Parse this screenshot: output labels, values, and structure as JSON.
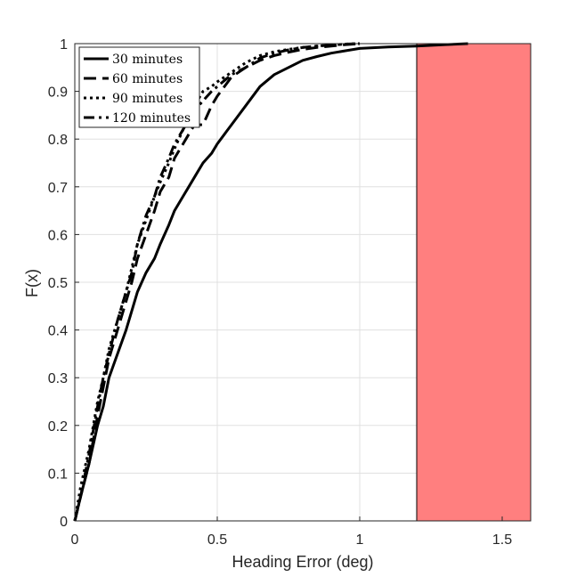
{
  "chart_data": {
    "type": "line",
    "xlabel": "Heading Error (deg)",
    "ylabel": "F(x)",
    "xlim": [
      0,
      1.6
    ],
    "ylim": [
      0,
      1
    ],
    "x_ticks": [
      "0",
      "0.5",
      "1",
      "1.5"
    ],
    "y_ticks": [
      "0",
      "0.1",
      "0.2",
      "0.3",
      "0.4",
      "0.5",
      "0.6",
      "0.7",
      "0.8",
      "0.9",
      "1"
    ],
    "grid": true,
    "legend_position": "top-left",
    "shaded_region": {
      "x_start": 1.2,
      "x_end": 1.6,
      "color": "#ff7f7f"
    },
    "series": [
      {
        "name": "30 minutes",
        "dash": "solid",
        "x": [
          0,
          0.02,
          0.05,
          0.08,
          0.1,
          0.12,
          0.15,
          0.18,
          0.2,
          0.22,
          0.25,
          0.28,
          0.3,
          0.33,
          0.35,
          0.38,
          0.4,
          0.43,
          0.45,
          0.48,
          0.5,
          0.55,
          0.6,
          0.65,
          0.7,
          0.75,
          0.8,
          0.85,
          0.9,
          0.95,
          1.0,
          1.1,
          1.2,
          1.3,
          1.38
        ],
        "y": [
          0,
          0.05,
          0.12,
          0.2,
          0.24,
          0.3,
          0.35,
          0.4,
          0.44,
          0.48,
          0.52,
          0.55,
          0.58,
          0.62,
          0.65,
          0.68,
          0.7,
          0.73,
          0.75,
          0.77,
          0.79,
          0.83,
          0.87,
          0.91,
          0.935,
          0.95,
          0.965,
          0.973,
          0.98,
          0.985,
          0.99,
          0.993,
          0.995,
          0.998,
          1.0
        ]
      },
      {
        "name": "60 minutes",
        "dash": "long",
        "x": [
          0,
          0.02,
          0.05,
          0.08,
          0.1,
          0.12,
          0.15,
          0.18,
          0.2,
          0.22,
          0.25,
          0.28,
          0.3,
          0.33,
          0.35,
          0.38,
          0.4,
          0.42,
          0.45,
          0.48,
          0.5,
          0.55,
          0.6,
          0.65,
          0.7,
          0.75,
          0.8,
          0.85,
          0.9,
          0.95,
          1.0
        ],
        "y": [
          0,
          0.05,
          0.12,
          0.22,
          0.28,
          0.34,
          0.4,
          0.46,
          0.5,
          0.55,
          0.6,
          0.65,
          0.69,
          0.72,
          0.76,
          0.79,
          0.81,
          0.83,
          0.83,
          0.87,
          0.89,
          0.93,
          0.95,
          0.965,
          0.975,
          0.982,
          0.988,
          0.992,
          0.995,
          0.998,
          1.0
        ]
      },
      {
        "name": "90 minutes",
        "dash": "dotted",
        "x": [
          0,
          0.02,
          0.05,
          0.08,
          0.1,
          0.12,
          0.15,
          0.18,
          0.2,
          0.22,
          0.25,
          0.28,
          0.3,
          0.33,
          0.35,
          0.38,
          0.4,
          0.43,
          0.45,
          0.48,
          0.5,
          0.55,
          0.6,
          0.65,
          0.7,
          0.75,
          0.8,
          0.85,
          0.9,
          0.95,
          1.0
        ],
        "y": [
          0,
          0.07,
          0.15,
          0.25,
          0.3,
          0.36,
          0.42,
          0.48,
          0.53,
          0.58,
          0.63,
          0.68,
          0.71,
          0.75,
          0.78,
          0.82,
          0.85,
          0.88,
          0.9,
          0.91,
          0.92,
          0.94,
          0.96,
          0.975,
          0.983,
          0.988,
          0.992,
          0.995,
          0.997,
          0.999,
          1.0
        ]
      },
      {
        "name": "120 minutes",
        "dash": "dashdot",
        "x": [
          0,
          0.02,
          0.05,
          0.08,
          0.1,
          0.12,
          0.15,
          0.18,
          0.2,
          0.22,
          0.25,
          0.28,
          0.3,
          0.33,
          0.35,
          0.38,
          0.4,
          0.42,
          0.45,
          0.48,
          0.5,
          0.55,
          0.6,
          0.65,
          0.7,
          0.75,
          0.8,
          0.85,
          0.9,
          0.95,
          1.0
        ],
        "y": [
          0,
          0.05,
          0.14,
          0.24,
          0.3,
          0.35,
          0.42,
          0.48,
          0.52,
          0.58,
          0.64,
          0.68,
          0.72,
          0.76,
          0.79,
          0.82,
          0.84,
          0.86,
          0.88,
          0.9,
          0.91,
          0.935,
          0.95,
          0.97,
          0.98,
          0.987,
          0.992,
          0.995,
          0.997,
          0.999,
          1.0
        ]
      }
    ]
  }
}
